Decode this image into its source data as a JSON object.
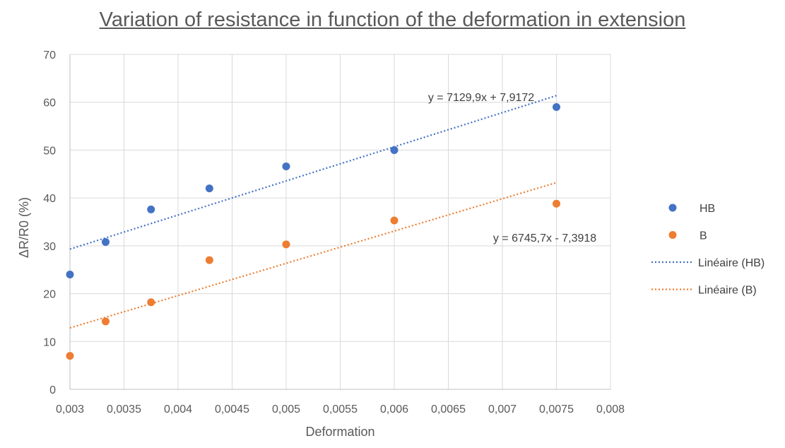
{
  "chart_data": {
    "type": "scatter",
    "title": "Variation of resistance in function of the deformation in extension",
    "xlabel": "Deformation",
    "ylabel": "ΔR/R0 (%)",
    "xlim": [
      0.003,
      0.008
    ],
    "ylim": [
      0,
      70
    ],
    "x_ticks": [
      "0,003",
      "0,0035",
      "0,004",
      "0,0045",
      "0,005",
      "0,0055",
      "0,006",
      "0,0065",
      "0,007",
      "0,0075",
      "0,008"
    ],
    "y_ticks": [
      "0",
      "10",
      "20",
      "30",
      "40",
      "50",
      "60",
      "70"
    ],
    "grid": true,
    "legend_position": "right",
    "series": [
      {
        "name": "HB",
        "color": "#4472C4",
        "marker": "circle",
        "x": [
          0.003,
          0.00333,
          0.00375,
          0.00429,
          0.005,
          0.006,
          0.0075
        ],
        "y": [
          24.0,
          30.8,
          37.6,
          42.0,
          46.6,
          50.0,
          59.0
        ]
      },
      {
        "name": "B",
        "color": "#ED7D31",
        "marker": "circle",
        "x": [
          0.003,
          0.00333,
          0.00375,
          0.00429,
          0.005,
          0.006,
          0.0075
        ],
        "y": [
          7.0,
          14.2,
          18.2,
          27.0,
          30.3,
          35.3,
          38.8
        ]
      }
    ],
    "trendlines": [
      {
        "name": "Linéaire (HB)",
        "color": "#4472C4",
        "style": "dotted",
        "slope": 7129.9,
        "intercept": 7.9172,
        "x_range": [
          0.003,
          0.0075
        ],
        "equation": "y = 7129,9x + 7,9172"
      },
      {
        "name": "Linéaire (B)",
        "color": "#ED7D31",
        "style": "dotted",
        "slope": 6745.7,
        "intercept": -7.3918,
        "x_range": [
          0.003,
          0.0075
        ],
        "equation": "y = 6745,7x - 7,3918"
      }
    ]
  }
}
